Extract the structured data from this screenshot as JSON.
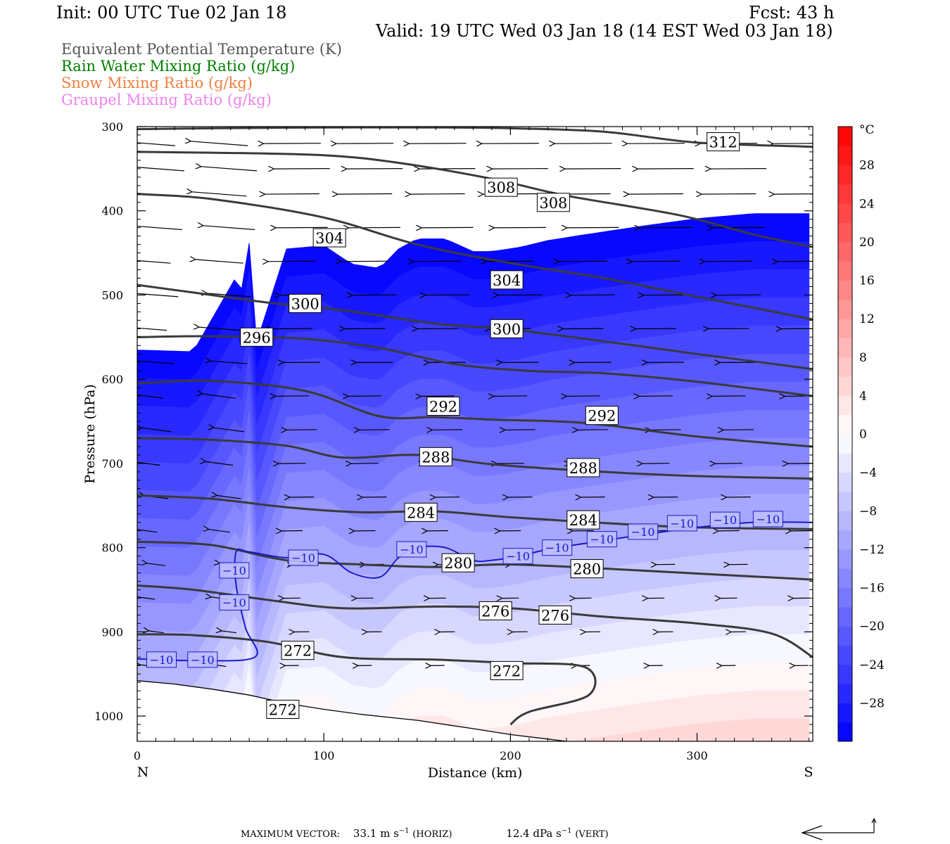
{
  "header": {
    "init": "Init: 00 UTC Tue 02 Jan 18",
    "fcst": "Fcst:   43 h",
    "valid": "Valid: 19 UTC Wed 03 Jan 18 (14 EST Wed 03 Jan 18)"
  },
  "fields": [
    {
      "label": "Equivalent Potential Temperature (K)",
      "color": "#555555"
    },
    {
      "label": "Rain Water Mixing Ratio (g/kg)",
      "color": "#008000"
    },
    {
      "label": "Snow Mixing Ratio (g/kg)",
      "color": "#f08040"
    },
    {
      "label": "Graupel Mixing Ratio (g/kg)",
      "color": "#ee82ee"
    }
  ],
  "chart_data": {
    "type": "heatmap",
    "xlabel": "Distance (km)",
    "ylabel": "Pressure (hPa)",
    "xlim": [
      0,
      362
    ],
    "ylim": [
      1030,
      300
    ],
    "x_ticks": [
      "0",
      "100",
      "200",
      "300"
    ],
    "y_ticks": [
      "300",
      "400",
      "500",
      "600",
      "700",
      "800",
      "900",
      "1000"
    ],
    "left_end_label": "N",
    "right_end_label": "S",
    "colorbar": {
      "unit": "°C",
      "labels": [
        "28",
        "24",
        "20",
        "16",
        "12",
        "8",
        "4",
        "0",
        "−4",
        "−8",
        "−12",
        "−16",
        "−20",
        "−24",
        "−28"
      ],
      "min": -32,
      "max": 32,
      "step": 2
    },
    "theta_e_contours": [
      {
        "label": "312",
        "points": [
          [
            0,
            303
          ],
          [
            40,
            302
          ],
          [
            100,
            301
          ],
          [
            160,
            301
          ],
          [
            200,
            302
          ],
          [
            250,
            306
          ],
          [
            300,
            319
          ],
          [
            362,
            324
          ]
        ]
      },
      {
        "label": "308",
        "points": [
          [
            0,
            330
          ],
          [
            40,
            331
          ],
          [
            100,
            334
          ],
          [
            140,
            343
          ],
          [
            190,
            362
          ],
          [
            230,
            382
          ],
          [
            290,
            405
          ],
          [
            330,
            428
          ],
          [
            362,
            443
          ]
        ]
      },
      {
        "label": "304",
        "points": [
          [
            0,
            380
          ],
          [
            40,
            386
          ],
          [
            100,
            408
          ],
          [
            150,
            440
          ],
          [
            200,
            462
          ],
          [
            250,
            480
          ],
          [
            300,
            502
          ],
          [
            362,
            529
          ]
        ]
      },
      {
        "label": "300",
        "points": [
          [
            0,
            488
          ],
          [
            30,
            497
          ],
          [
            70,
            509
          ],
          [
            110,
            518
          ],
          [
            160,
            534
          ],
          [
            200,
            541
          ],
          [
            250,
            555
          ],
          [
            300,
            570
          ],
          [
            362,
            588
          ]
        ]
      },
      {
        "label": "296",
        "points": [
          [
            0,
            550
          ],
          [
            40,
            549
          ],
          [
            90,
            552
          ],
          [
            130,
            563
          ],
          [
            170,
            582
          ],
          [
            210,
            590
          ],
          [
            250,
            593
          ],
          [
            300,
            603
          ],
          [
            362,
            620
          ]
        ]
      },
      {
        "label": "292",
        "points": [
          [
            0,
            605
          ],
          [
            40,
            602
          ],
          [
            90,
            614
          ],
          [
            130,
            644
          ],
          [
            160,
            645
          ],
          [
            190,
            648
          ],
          [
            240,
            652
          ],
          [
            300,
            668
          ],
          [
            362,
            680
          ]
        ]
      },
      {
        "label": "288",
        "points": [
          [
            0,
            670
          ],
          [
            40,
            672
          ],
          [
            80,
            679
          ],
          [
            110,
            693
          ],
          [
            150,
            690
          ],
          [
            190,
            701
          ],
          [
            250,
            710
          ],
          [
            300,
            715
          ],
          [
            362,
            718
          ]
        ]
      },
      {
        "label": "284",
        "points": [
          [
            0,
            738
          ],
          [
            40,
            742
          ],
          [
            80,
            752
          ],
          [
            120,
            758
          ],
          [
            160,
            757
          ],
          [
            200,
            764
          ],
          [
            260,
            772
          ],
          [
            300,
            776
          ],
          [
            362,
            778
          ]
        ]
      },
      {
        "label": "280",
        "points": [
          [
            0,
            793
          ],
          [
            40,
            797
          ],
          [
            80,
            815
          ],
          [
            120,
            820
          ],
          [
            160,
            823
          ],
          [
            200,
            820
          ],
          [
            260,
            826
          ],
          [
            310,
            832
          ],
          [
            362,
            838
          ]
        ]
      },
      {
        "label": "276",
        "points": [
          [
            0,
            845
          ],
          [
            30,
            850
          ],
          [
            70,
            862
          ],
          [
            110,
            872
          ],
          [
            160,
            870
          ],
          [
            200,
            872
          ],
          [
            250,
            882
          ],
          [
            300,
            890
          ],
          [
            340,
            902
          ],
          [
            362,
            930
          ]
        ]
      },
      {
        "label": "272",
        "points": [
          [
            0,
            903
          ],
          [
            30,
            904
          ],
          [
            70,
            912
          ],
          [
            110,
            930
          ],
          [
            160,
            933
          ],
          [
            200,
            937
          ],
          [
            240,
            942
          ],
          [
            242,
            975
          ],
          [
            210,
            995
          ],
          [
            200,
            1010
          ]
        ]
      }
    ],
    "minus10_isotherm": {
      "label": "−10",
      "points": [
        [
          0,
          932
        ],
        [
          30,
          934
        ],
        [
          63,
          930
        ],
        [
          58,
          895
        ],
        [
          53,
          845
        ],
        [
          53,
          805
        ],
        [
          60,
          805
        ],
        [
          80,
          812
        ],
        [
          100,
          808
        ],
        [
          115,
          830
        ],
        [
          130,
          835
        ],
        [
          140,
          812
        ],
        [
          150,
          800
        ],
        [
          165,
          800
        ],
        [
          180,
          815
        ],
        [
          190,
          815
        ],
        [
          205,
          810
        ],
        [
          220,
          802
        ],
        [
          240,
          795
        ],
        [
          270,
          785
        ],
        [
          300,
          776
        ],
        [
          330,
          770
        ],
        [
          362,
          770
        ]
      ]
    },
    "terrain_hpa": [
      [
        0,
        958
      ],
      [
        20,
        962
      ],
      [
        40,
        968
      ],
      [
        60,
        975
      ],
      [
        80,
        985
      ],
      [
        100,
        992
      ],
      [
        120,
        998
      ],
      [
        150,
        1005
      ],
      [
        180,
        1015
      ],
      [
        200,
        1022
      ],
      [
        230,
        1030
      ]
    ],
    "inline_labels": [
      {
        "text": "312",
        "x": 314,
        "y": 318
      },
      {
        "text": "308",
        "x": 195,
        "y": 372
      },
      {
        "text": "308",
        "x": 223,
        "y": 390
      },
      {
        "text": "304",
        "x": 103,
        "y": 432
      },
      {
        "text": "304",
        "x": 198,
        "y": 482
      },
      {
        "text": "300",
        "x": 90,
        "y": 510
      },
      {
        "text": "300",
        "x": 198,
        "y": 540
      },
      {
        "text": "296",
        "x": 64,
        "y": 550
      },
      {
        "text": "292",
        "x": 164,
        "y": 632
      },
      {
        "text": "292",
        "x": 249,
        "y": 643
      },
      {
        "text": "288",
        "x": 160,
        "y": 692
      },
      {
        "text": "288",
        "x": 239,
        "y": 705
      },
      {
        "text": "284",
        "x": 152,
        "y": 758
      },
      {
        "text": "284",
        "x": 239,
        "y": 767
      },
      {
        "text": "280",
        "x": 172,
        "y": 818
      },
      {
        "text": "280",
        "x": 241,
        "y": 825
      },
      {
        "text": "276",
        "x": 192,
        "y": 875
      },
      {
        "text": "276",
        "x": 224,
        "y": 880
      },
      {
        "text": "272",
        "x": 86,
        "y": 922
      },
      {
        "text": "272",
        "x": 198,
        "y": 946
      },
      {
        "text": "272",
        "x": 78,
        "y": 992
      }
    ],
    "iso_labels": [
      {
        "text": "−10",
        "x": 13,
        "y": 933
      },
      {
        "text": "−10",
        "x": 35,
        "y": 933
      },
      {
        "text": "−10",
        "x": 52,
        "y": 865
      },
      {
        "text": "−10",
        "x": 52,
        "y": 827
      },
      {
        "text": "−10",
        "x": 89,
        "y": 812
      },
      {
        "text": "−10",
        "x": 147,
        "y": 802
      },
      {
        "text": "−10",
        "x": 204,
        "y": 810
      },
      {
        "text": "−10",
        "x": 225,
        "y": 800
      },
      {
        "text": "−10",
        "x": 249,
        "y": 790
      },
      {
        "text": "−10",
        "x": 271,
        "y": 781
      },
      {
        "text": "−10",
        "x": 292,
        "y": 771
      },
      {
        "text": "−10",
        "x": 315,
        "y": 767
      },
      {
        "text": "−10",
        "x": 338,
        "y": 766
      }
    ],
    "wind_speed_by_level": [
      [
        300,
        33
      ],
      [
        400,
        30
      ],
      [
        500,
        24
      ],
      [
        600,
        18
      ],
      [
        700,
        13
      ],
      [
        800,
        8
      ],
      [
        900,
        5
      ],
      [
        1000,
        3
      ]
    ]
  },
  "footer": {
    "max_vector_label": "MAXIMUM VECTOR:",
    "horiz_value": "33.1 m s",
    "horiz_exp": "−1",
    "horiz_unit": "(HORIZ)",
    "vert_value": "12.4 dPa s",
    "vert_exp": "−1",
    "vert_unit": "(VERT)"
  }
}
